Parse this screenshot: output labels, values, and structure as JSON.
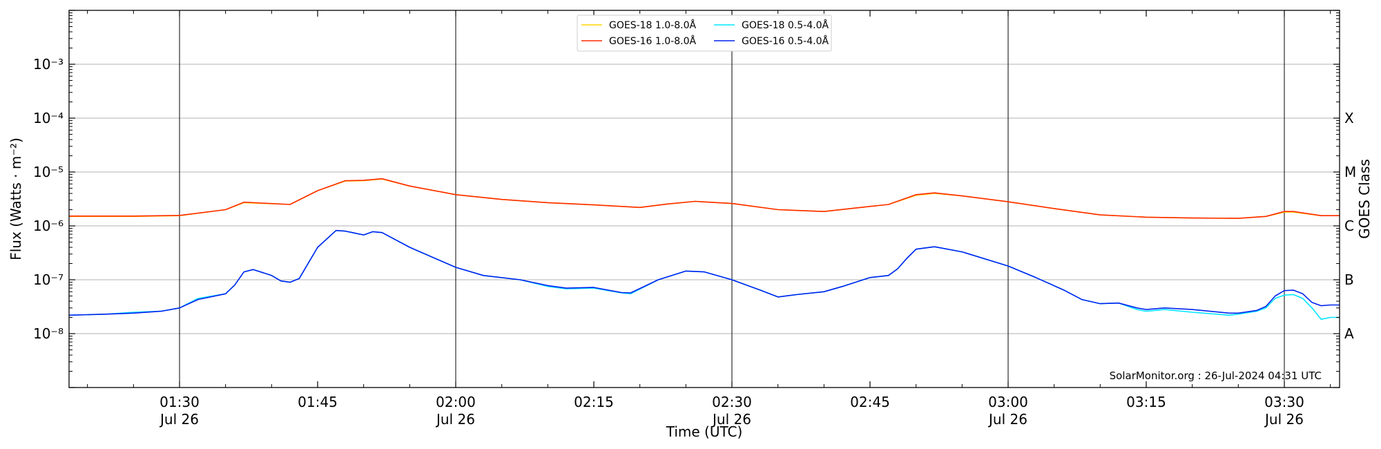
{
  "chart_data": {
    "type": "line",
    "xlabel": "Time (UTC)",
    "ylabel": "Flux (Watts · m⁻²)",
    "ylabel_right": "GOES Class",
    "y_scale": "log",
    "ylim": [
      1e-09,
      0.01
    ],
    "xlim": [
      "2024-07-26 01:18",
      "2024-07-26 03:36"
    ],
    "grid": "horizontal at each decade",
    "legend_position": "top-center",
    "x_ticks": [
      {
        "time": "01:30",
        "date": "Jul 26"
      },
      {
        "time": "01:45",
        "date": ""
      },
      {
        "time": "02:00",
        "date": "Jul 26"
      },
      {
        "time": "02:15",
        "date": ""
      },
      {
        "time": "02:30",
        "date": "Jul 26"
      },
      {
        "time": "02:45",
        "date": ""
      },
      {
        "time": "03:00",
        "date": "Jul 26"
      },
      {
        "time": "03:15",
        "date": ""
      },
      {
        "time": "03:30",
        "date": "Jul 26"
      }
    ],
    "vertical_lines": [
      "01:30",
      "02:00",
      "02:30",
      "03:00",
      "03:30"
    ],
    "y_ticks": [
      "10⁻⁸",
      "10⁻⁷",
      "10⁻⁶",
      "10⁻⁵",
      "10⁻⁴",
      "10⁻³"
    ],
    "goes_classes": [
      {
        "label": "A",
        "flux": 1e-08
      },
      {
        "label": "B",
        "flux": 1e-07
      },
      {
        "label": "C",
        "flux": 1e-06
      },
      {
        "label": "M",
        "flux": 1e-05
      },
      {
        "label": "X",
        "flux": 0.0001
      }
    ],
    "annotation": "SolarMonitor.org : 26-Jul-2024 04:31 UTC",
    "series": [
      {
        "name": "GOES-18 1.0-8.0Å",
        "color": "#ffd700",
        "points": [
          [
            "01:18",
            1.5e-06
          ],
          [
            "01:25",
            1.5e-06
          ],
          [
            "01:30",
            1.55e-06
          ],
          [
            "01:35",
            2e-06
          ],
          [
            "01:37",
            2.7e-06
          ],
          [
            "01:42",
            2.5e-06
          ],
          [
            "01:45",
            4.5e-06
          ],
          [
            "01:48",
            6.8e-06
          ],
          [
            "01:50",
            6.9e-06
          ],
          [
            "01:52",
            7.4e-06
          ],
          [
            "01:55",
            5.5e-06
          ],
          [
            "02:00",
            3.8e-06
          ],
          [
            "02:05",
            3.1e-06
          ],
          [
            "02:10",
            2.7e-06
          ],
          [
            "02:15",
            2.45e-06
          ],
          [
            "02:20",
            2.2e-06
          ],
          [
            "02:23",
            2.55e-06
          ],
          [
            "02:26",
            2.85e-06
          ],
          [
            "02:30",
            2.6e-06
          ],
          [
            "02:35",
            2e-06
          ],
          [
            "02:40",
            1.85e-06
          ],
          [
            "02:45",
            2.3e-06
          ],
          [
            "02:47",
            2.5e-06
          ],
          [
            "02:50",
            3.7e-06
          ],
          [
            "02:52",
            4e-06
          ],
          [
            "02:55",
            3.6e-06
          ],
          [
            "03:00",
            2.8e-06
          ],
          [
            "03:05",
            2.1e-06
          ],
          [
            "03:10",
            1.6e-06
          ],
          [
            "03:15",
            1.45e-06
          ],
          [
            "03:20",
            1.4e-06
          ],
          [
            "03:25",
            1.38e-06
          ],
          [
            "03:28",
            1.5e-06
          ],
          [
            "03:30",
            1.8e-06
          ],
          [
            "03:31",
            1.8e-06
          ],
          [
            "03:34",
            1.55e-06
          ],
          [
            "03:36",
            1.55e-06
          ]
        ]
      },
      {
        "name": "GOES-16 1.0-8.0Å",
        "color": "#ff2a00",
        "points": [
          [
            "01:18",
            1.52e-06
          ],
          [
            "01:25",
            1.52e-06
          ],
          [
            "01:30",
            1.56e-06
          ],
          [
            "01:35",
            2e-06
          ],
          [
            "01:37",
            2.75e-06
          ],
          [
            "01:42",
            2.5e-06
          ],
          [
            "01:45",
            4.5e-06
          ],
          [
            "01:48",
            6.9e-06
          ],
          [
            "01:50",
            7e-06
          ],
          [
            "01:52",
            7.5e-06
          ],
          [
            "01:55",
            5.5e-06
          ],
          [
            "02:00",
            3.8e-06
          ],
          [
            "02:05",
            3.1e-06
          ],
          [
            "02:10",
            2.7e-06
          ],
          [
            "02:15",
            2.45e-06
          ],
          [
            "02:20",
            2.2e-06
          ],
          [
            "02:23",
            2.55e-06
          ],
          [
            "02:26",
            2.85e-06
          ],
          [
            "02:30",
            2.6e-06
          ],
          [
            "02:35",
            2e-06
          ],
          [
            "02:40",
            1.85e-06
          ],
          [
            "02:45",
            2.3e-06
          ],
          [
            "02:47",
            2.5e-06
          ],
          [
            "02:50",
            3.8e-06
          ],
          [
            "02:52",
            4.1e-06
          ],
          [
            "02:55",
            3.6e-06
          ],
          [
            "03:00",
            2.8e-06
          ],
          [
            "03:05",
            2.1e-06
          ],
          [
            "03:10",
            1.6e-06
          ],
          [
            "03:15",
            1.45e-06
          ],
          [
            "03:20",
            1.4e-06
          ],
          [
            "03:25",
            1.38e-06
          ],
          [
            "03:28",
            1.5e-06
          ],
          [
            "03:30",
            1.85e-06
          ],
          [
            "03:31",
            1.85e-06
          ],
          [
            "03:34",
            1.55e-06
          ],
          [
            "03:36",
            1.55e-06
          ]
        ]
      },
      {
        "name": "GOES-18 0.5-4.0Å",
        "color": "#00e5ff",
        "points": [
          [
            "01:18",
            2.2e-08
          ],
          [
            "01:22",
            2.3e-08
          ],
          [
            "01:25",
            2.5e-08
          ],
          [
            "01:28",
            2.6e-08
          ],
          [
            "01:30",
            3e-08
          ],
          [
            "01:32",
            4.5e-08
          ],
          [
            "01:35",
            5.5e-08
          ],
          [
            "01:36",
            8e-08
          ],
          [
            "01:37",
            1.4e-07
          ],
          [
            "01:38",
            1.55e-07
          ],
          [
            "01:40",
            1.2e-07
          ],
          [
            "01:41",
            9.5e-08
          ],
          [
            "01:42",
            9e-08
          ],
          [
            "01:43",
            1.05e-07
          ],
          [
            "01:45",
            4e-07
          ],
          [
            "01:47",
            8.2e-07
          ],
          [
            "01:48",
            8e-07
          ],
          [
            "01:50",
            6.8e-07
          ],
          [
            "01:51",
            7.8e-07
          ],
          [
            "01:52",
            7.5e-07
          ],
          [
            "01:55",
            4e-07
          ],
          [
            "02:00",
            1.7e-07
          ],
          [
            "02:03",
            1.2e-07
          ],
          [
            "02:07",
            1e-07
          ],
          [
            "02:10",
            7.5e-08
          ],
          [
            "02:12",
            6.8e-08
          ],
          [
            "02:15",
            7e-08
          ],
          [
            "02:18",
            5.7e-08
          ],
          [
            "02:19",
            5.5e-08
          ],
          [
            "02:22",
            1e-07
          ],
          [
            "02:25",
            1.45e-07
          ],
          [
            "02:27",
            1.4e-07
          ],
          [
            "02:30",
            1e-07
          ],
          [
            "02:33",
            6.5e-08
          ],
          [
            "02:35",
            4.8e-08
          ],
          [
            "02:37",
            5.3e-08
          ],
          [
            "02:40",
            6e-08
          ],
          [
            "02:42",
            7.5e-08
          ],
          [
            "02:45",
            1.1e-07
          ],
          [
            "02:47",
            1.2e-07
          ],
          [
            "02:48",
            1.6e-07
          ],
          [
            "02:49",
            2.5e-07
          ],
          [
            "02:50",
            3.7e-07
          ],
          [
            "02:52",
            4.1e-07
          ],
          [
            "02:55",
            3.3e-07
          ],
          [
            "03:00",
            1.8e-07
          ],
          [
            "03:03",
            1.1e-07
          ],
          [
            "03:06",
            6.5e-08
          ],
          [
            "03:08",
            4.3e-08
          ],
          [
            "03:10",
            3.6e-08
          ],
          [
            "03:12",
            3.7e-08
          ],
          [
            "03:14",
            2.8e-08
          ],
          [
            "03:15",
            2.6e-08
          ],
          [
            "03:17",
            2.8e-08
          ],
          [
            "03:20",
            2.5e-08
          ],
          [
            "03:24",
            2.2e-08
          ],
          [
            "03:25",
            2.3e-08
          ],
          [
            "03:27",
            2.6e-08
          ],
          [
            "03:28",
            3e-08
          ],
          [
            "03:29",
            4.5e-08
          ],
          [
            "03:30",
            5.2e-08
          ],
          [
            "03:31",
            5.3e-08
          ],
          [
            "03:32",
            4.5e-08
          ],
          [
            "03:33",
            3e-08
          ],
          [
            "03:34",
            1.85e-08
          ],
          [
            "03:35",
            2e-08
          ],
          [
            "03:36",
            2e-08
          ]
        ]
      },
      {
        "name": "GOES-16 0.5-4.0Å",
        "color": "#0022ee",
        "points": [
          [
            "01:18",
            2.2e-08
          ],
          [
            "01:22",
            2.3e-08
          ],
          [
            "01:25",
            2.4e-08
          ],
          [
            "01:28",
            2.6e-08
          ],
          [
            "01:30",
            3e-08
          ],
          [
            "01:32",
            4.3e-08
          ],
          [
            "01:35",
            5.5e-08
          ],
          [
            "01:36",
            8e-08
          ],
          [
            "01:37",
            1.4e-07
          ],
          [
            "01:38",
            1.55e-07
          ],
          [
            "01:40",
            1.2e-07
          ],
          [
            "01:41",
            9.5e-08
          ],
          [
            "01:42",
            9e-08
          ],
          [
            "01:43",
            1.05e-07
          ],
          [
            "01:45",
            4e-07
          ],
          [
            "01:47",
            8.2e-07
          ],
          [
            "01:48",
            8e-07
          ],
          [
            "01:50",
            6.8e-07
          ],
          [
            "01:51",
            7.8e-07
          ],
          [
            "01:52",
            7.5e-07
          ],
          [
            "01:55",
            4e-07
          ],
          [
            "02:00",
            1.7e-07
          ],
          [
            "02:03",
            1.2e-07
          ],
          [
            "02:07",
            1e-07
          ],
          [
            "02:10",
            7.8e-08
          ],
          [
            "02:12",
            7e-08
          ],
          [
            "02:15",
            7.2e-08
          ],
          [
            "02:18",
            5.8e-08
          ],
          [
            "02:19",
            5.7e-08
          ],
          [
            "02:22",
            1e-07
          ],
          [
            "02:25",
            1.45e-07
          ],
          [
            "02:27",
            1.4e-07
          ],
          [
            "02:30",
            1e-07
          ],
          [
            "02:33",
            6.5e-08
          ],
          [
            "02:35",
            4.8e-08
          ],
          [
            "02:37",
            5.3e-08
          ],
          [
            "02:40",
            6e-08
          ],
          [
            "02:42",
            7.5e-08
          ],
          [
            "02:45",
            1.1e-07
          ],
          [
            "02:47",
            1.2e-07
          ],
          [
            "02:48",
            1.6e-07
          ],
          [
            "02:49",
            2.5e-07
          ],
          [
            "02:50",
            3.7e-07
          ],
          [
            "02:52",
            4.1e-07
          ],
          [
            "02:55",
            3.3e-07
          ],
          [
            "03:00",
            1.8e-07
          ],
          [
            "03:03",
            1.1e-07
          ],
          [
            "03:06",
            6.5e-08
          ],
          [
            "03:08",
            4.3e-08
          ],
          [
            "03:10",
            3.6e-08
          ],
          [
            "03:12",
            3.7e-08
          ],
          [
            "03:14",
            3e-08
          ],
          [
            "03:15",
            2.8e-08
          ],
          [
            "03:17",
            3e-08
          ],
          [
            "03:20",
            2.8e-08
          ],
          [
            "03:24",
            2.4e-08
          ],
          [
            "03:25",
            2.4e-08
          ],
          [
            "03:27",
            2.7e-08
          ],
          [
            "03:28",
            3.2e-08
          ],
          [
            "03:29",
            5e-08
          ],
          [
            "03:30",
            6.3e-08
          ],
          [
            "03:31",
            6.4e-08
          ],
          [
            "03:32",
            5.5e-08
          ],
          [
            "03:33",
            3.8e-08
          ],
          [
            "03:34",
            3.3e-08
          ],
          [
            "03:35",
            3.4e-08
          ],
          [
            "03:36",
            3.4e-08
          ]
        ]
      }
    ]
  }
}
